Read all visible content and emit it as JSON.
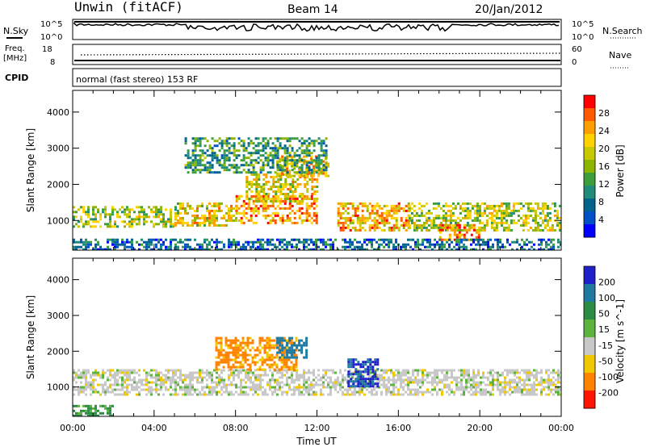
{
  "header": {
    "title": "Unwin (fitACF)",
    "beam": "Beam 14",
    "date": "20/Jan/2012"
  },
  "panels": {
    "nsky_label": "N.Sky",
    "nsearch_label": "N.Search",
    "freq_label": "Freq.",
    "freq_unit": "[MHz]",
    "nave_label": "Nave",
    "cpid_label": "CPID",
    "cpid_text": "normal (fast stereo) 153 RF",
    "noise_ticks": [
      "10^5",
      "10^0"
    ],
    "freq_ticks": [
      "18",
      "8"
    ],
    "nave_ticks": [
      "60",
      "0"
    ]
  },
  "power_colorbar": {
    "label": "Power [dB]",
    "ticks": [
      "28",
      "24",
      "20",
      "16",
      "12",
      "8",
      "4"
    ],
    "colors": [
      "#ff0000",
      "#ff5a00",
      "#ff9e00",
      "#ffd200",
      "#c8c800",
      "#8cb400",
      "#3c9e3c",
      "#1e8c78",
      "#00648c",
      "#0050c8",
      "#0000ff"
    ]
  },
  "velocity_colorbar": {
    "label": "Velocity [m s^-1]",
    "ticks": [
      "200",
      "100",
      "50",
      "15",
      "-15",
      "-50",
      "-100",
      "-200"
    ],
    "colors": [
      "#2020c8",
      "#1e7aa0",
      "#2c8c46",
      "#5cb43c",
      "#c8c8c8",
      "#f0c800",
      "#ff8200",
      "#ff1400"
    ]
  },
  "chart_data": {
    "type": "heatmap",
    "xlabel": "Time UT",
    "ylabel": "Slant Range [km]",
    "x_ticks": [
      "00:00",
      "04:00",
      "08:00",
      "12:00",
      "16:00",
      "20:00",
      "00:00"
    ],
    "y_ticks": [
      1000,
      2000,
      3000,
      4000
    ],
    "xlim": [
      0,
      24
    ],
    "ylim": [
      180,
      4600
    ],
    "power_regions": [
      {
        "t": [
          0.0,
          5.0
        ],
        "r": [
          800,
          1400
        ],
        "level": 0.55
      },
      {
        "t": [
          5.0,
          8.0
        ],
        "r": [
          850,
          1500
        ],
        "level": 0.65
      },
      {
        "t": [
          8.0,
          12.0
        ],
        "r": [
          900,
          1700
        ],
        "level": 0.8
      },
      {
        "t": [
          8.5,
          12.0
        ],
        "r": [
          1500,
          2300
        ],
        "level": 0.65
      },
      {
        "t": [
          10.0,
          12.5
        ],
        "r": [
          2200,
          2800
        ],
        "level": 0.7
      },
      {
        "t": [
          13.0,
          16.5
        ],
        "r": [
          700,
          1500
        ],
        "level": 0.75
      },
      {
        "t": [
          16.5,
          24.0
        ],
        "r": [
          700,
          1500
        ],
        "level": 0.55
      },
      {
        "t": [
          18.0,
          20.0
        ],
        "r": [
          450,
          900
        ],
        "level": 0.85
      },
      {
        "t": [
          5.5,
          12.5
        ],
        "r": [
          2300,
          3300
        ],
        "level": 0.35
      },
      {
        "t": [
          0.0,
          24.0
        ],
        "r": [
          200,
          500
        ],
        "level": 0.2
      }
    ],
    "velocity_regions": [
      {
        "t": [
          0.0,
          24.0
        ],
        "r": [
          800,
          1500
        ],
        "value": 0
      },
      {
        "t": [
          7.0,
          11.0
        ],
        "r": [
          1500,
          2400
        ],
        "value": -60
      },
      {
        "t": [
          10.0,
          11.5
        ],
        "r": [
          1800,
          2400
        ],
        "value": 120
      },
      {
        "t": [
          13.5,
          15.0
        ],
        "r": [
          1000,
          1800
        ],
        "value": 150
      },
      {
        "t": [
          0.0,
          2.0
        ],
        "r": [
          200,
          500
        ],
        "value": 40
      }
    ]
  }
}
